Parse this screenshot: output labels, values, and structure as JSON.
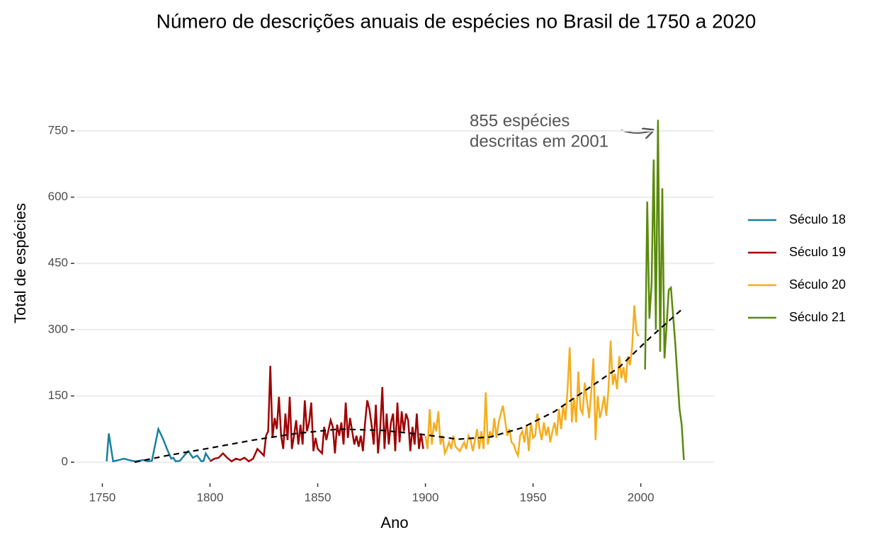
{
  "chart_data": {
    "type": "line",
    "title": "Número de descrições anuais de espécies no Brasil de 1750 a 2020",
    "x_label": "Ano",
    "y_label": "Total de espécies",
    "xlim": [
      1738,
      2034
    ],
    "ylim": [
      -43,
      790
    ],
    "xticks": [
      1750,
      1800,
      1850,
      1900,
      1950,
      2000
    ],
    "yticks": [
      0,
      150,
      300,
      450,
      600,
      750
    ],
    "grid": true,
    "legend": "right",
    "annotation": [
      "855 espécies",
      "descritas em 2001"
    ],
    "series": [
      {
        "name": "Século 18",
        "color": "#1a7fa0",
        "x": [
          1752,
          1753,
          1755,
          1757,
          1760,
          1763,
          1765,
          1767,
          1769,
          1771,
          1773,
          1776,
          1778,
          1780,
          1782,
          1783,
          1784,
          1786,
          1788,
          1790,
          1792,
          1794,
          1796,
          1797,
          1798,
          1800
        ],
        "values": [
          2,
          65,
          2,
          4,
          8,
          4,
          2,
          3,
          5,
          2,
          3,
          75,
          55,
          30,
          8,
          10,
          2,
          3,
          15,
          25,
          10,
          15,
          2,
          3,
          20,
          5
        ]
      },
      {
        "name": "Século 19",
        "color": "#a00000",
        "x": [
          1800,
          1802,
          1804,
          1806,
          1808,
          1810,
          1812,
          1814,
          1816,
          1818,
          1820,
          1822,
          1824,
          1825,
          1826,
          1827,
          1828,
          1829,
          1830,
          1831,
          1832,
          1833,
          1834,
          1835,
          1836,
          1837,
          1838,
          1839,
          1840,
          1841,
          1842,
          1843,
          1844,
          1845,
          1846,
          1847,
          1848,
          1849,
          1850,
          1852,
          1853,
          1854,
          1856,
          1857,
          1858,
          1859,
          1860,
          1861,
          1862,
          1863,
          1864,
          1865,
          1866,
          1867,
          1868,
          1869,
          1870,
          1871,
          1872,
          1873,
          1874,
          1875,
          1876,
          1877,
          1878,
          1879,
          1880,
          1881,
          1882,
          1883,
          1884,
          1885,
          1886,
          1887,
          1888,
          1889,
          1890,
          1891,
          1892,
          1893,
          1894,
          1895,
          1896,
          1897,
          1898,
          1899
        ],
        "values": [
          2,
          8,
          10,
          20,
          10,
          2,
          8,
          5,
          10,
          2,
          8,
          30,
          20,
          15,
          60,
          70,
          218,
          55,
          100,
          75,
          148,
          60,
          30,
          110,
          50,
          148,
          30,
          60,
          95,
          40,
          85,
          40,
          140,
          70,
          90,
          135,
          25,
          55,
          30,
          20,
          80,
          50,
          95,
          80,
          20,
          85,
          60,
          90,
          40,
          135,
          55,
          100,
          70,
          40,
          60,
          35,
          60,
          25,
          90,
          140,
          120,
          85,
          40,
          130,
          20,
          75,
          170,
          30,
          110,
          40,
          90,
          110,
          25,
          135,
          45,
          115,
          70,
          110,
          95,
          25,
          80,
          40,
          110,
          30,
          65,
          30
        ]
      },
      {
        "name": "Século 20",
        "color": "#f5ad1d",
        "x": [
          1900,
          1901,
          1902,
          1903,
          1904,
          1905,
          1906,
          1907,
          1908,
          1909,
          1910,
          1911,
          1912,
          1913,
          1914,
          1916,
          1918,
          1919,
          1920,
          1921,
          1922,
          1924,
          1925,
          1926,
          1927,
          1928,
          1929,
          1930,
          1931,
          1932,
          1933,
          1934,
          1935,
          1936,
          1937,
          1938,
          1939,
          1940,
          1941,
          1942,
          1943,
          1944,
          1945,
          1946,
          1947,
          1948,
          1949,
          1950,
          1951,
          1952,
          1953,
          1954,
          1955,
          1956,
          1957,
          1958,
          1959,
          1960,
          1961,
          1962,
          1963,
          1964,
          1965,
          1966,
          1967,
          1968,
          1969,
          1970,
          1971,
          1972,
          1973,
          1974,
          1975,
          1976,
          1977,
          1978,
          1979,
          1980,
          1981,
          1982,
          1983,
          1984,
          1985,
          1986,
          1987,
          1988,
          1989,
          1990,
          1991,
          1992,
          1993,
          1994,
          1995,
          1996,
          1997,
          1998,
          1999
        ],
        "values": [
          60,
          30,
          120,
          40,
          90,
          70,
          115,
          40,
          60,
          20,
          30,
          45,
          30,
          60,
          35,
          25,
          45,
          30,
          60,
          50,
          25,
          75,
          30,
          70,
          30,
          158,
          40,
          70,
          55,
          100,
          55,
          90,
          110,
          128,
          95,
          60,
          75,
          45,
          40,
          25,
          15,
          60,
          70,
          45,
          85,
          25,
          90,
          55,
          60,
          110,
          75,
          50,
          90,
          60,
          80,
          45,
          70,
          90,
          60,
          120,
          75,
          130,
          95,
          165,
          260,
          90,
          145,
          90,
          205,
          120,
          110,
          180,
          140,
          100,
          160,
          235,
          50,
          150,
          100,
          120,
          150,
          105,
          165,
          275,
          175,
          200,
          165,
          240,
          190,
          215,
          180,
          240,
          220,
          260,
          355,
          295,
          285
        ]
      },
      {
        "name": "Século 21",
        "color": "#5a8a0a",
        "x": [
          2002,
          2003,
          2004,
          2005,
          2006,
          2007,
          2008,
          2009,
          2010,
          2011,
          2012,
          2013,
          2014,
          2016,
          2018,
          2019,
          2020
        ],
        "values": [
          210,
          590,
          325,
          400,
          685,
          300,
          775,
          250,
          620,
          235,
          310,
          390,
          395,
          270,
          120,
          85,
          5
        ]
      }
    ],
    "trend": {
      "x": [
        1765,
        1780,
        1800,
        1820,
        1840,
        1860,
        1880,
        1900,
        1915,
        1930,
        1945,
        1960,
        1975,
        1990,
        2005,
        2020
      ],
      "values": [
        0,
        15,
        32,
        50,
        65,
        75,
        72,
        62,
        52,
        57,
        78,
        115,
        165,
        215,
        285,
        350
      ]
    }
  }
}
